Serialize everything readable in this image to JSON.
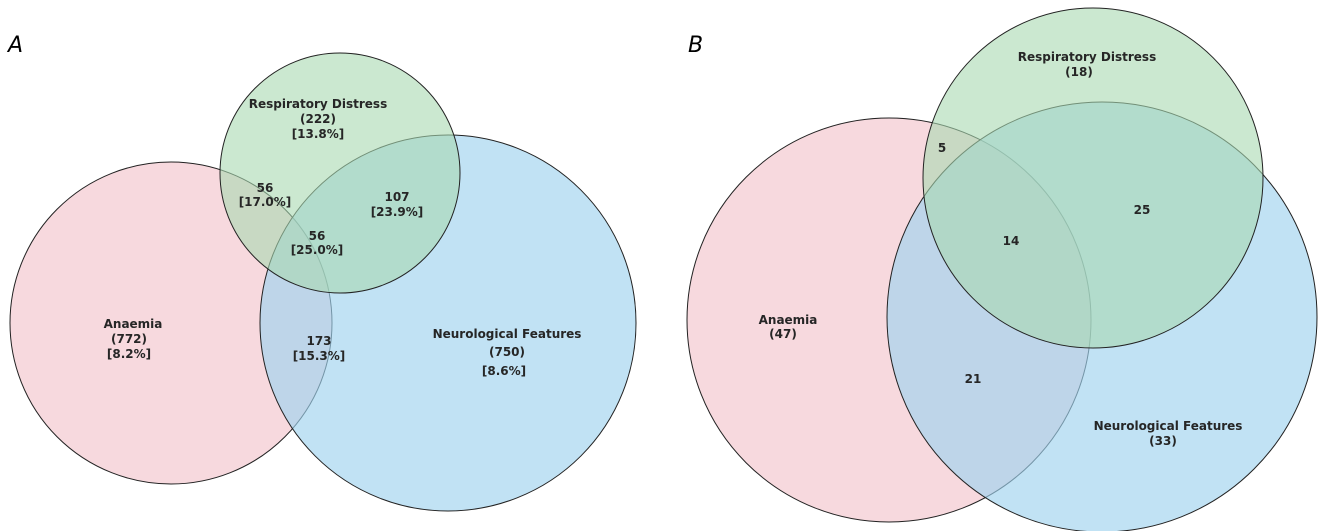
{
  "panels": [
    {
      "letter": "A",
      "sets": {
        "anaemia": {
          "name": "Anaemia",
          "count": "(772)",
          "pct": "[8.2%]",
          "color": "#f2c4cc"
        },
        "respiratory": {
          "name": "Respiratory Distress",
          "count": "(222)",
          "pct": "[13.8%]",
          "color": "#a8d8b0"
        },
        "neuro": {
          "name": "Neurological Features",
          "count": "(750)",
          "pct": "[8.6%]",
          "color": "#9fd3ee"
        }
      },
      "intersections": {
        "anaemia_respiratory": {
          "count": "56",
          "pct": "[17.0%]"
        },
        "respiratory_neuro": {
          "count": "107",
          "pct": "[23.9%]"
        },
        "all_three": {
          "count": "56",
          "pct": "[25.0%]"
        },
        "anaemia_neuro": {
          "count": "173",
          "pct": "[15.3%]"
        }
      }
    },
    {
      "letter": "B",
      "sets": {
        "anaemia": {
          "name": "Anaemia",
          "count": "(47)",
          "color": "#f2c4cc"
        },
        "respiratory": {
          "name": "Respiratory Distress",
          "count": "(18)",
          "color": "#a8d8b0"
        },
        "neuro": {
          "name": "Neurological Features",
          "count": "(33)",
          "color": "#9fd3ee"
        }
      },
      "intersections": {
        "anaemia_respiratory": {
          "count": "5"
        },
        "respiratory_neuro": {
          "count": "25"
        },
        "all_three": {
          "count": "14"
        },
        "anaemia_neuro": {
          "count": "21"
        }
      }
    }
  ]
}
